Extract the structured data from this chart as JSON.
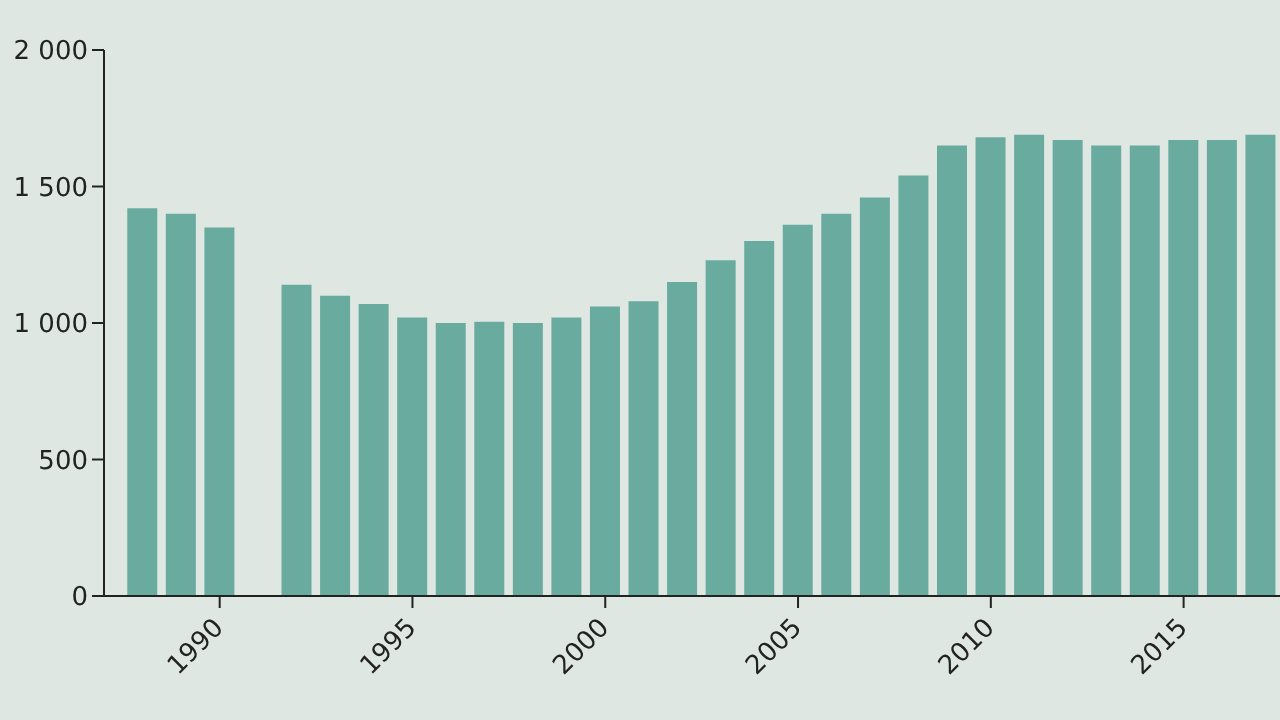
{
  "chart_data": {
    "type": "bar",
    "x": [
      1988,
      1989,
      1990,
      1991,
      1992,
      1993,
      1994,
      1995,
      1996,
      1997,
      1998,
      1999,
      2000,
      2001,
      2002,
      2003,
      2004,
      2005,
      2006,
      2007,
      2008,
      2009,
      2010,
      2011,
      2012,
      2013,
      2014,
      2015,
      2016,
      2017
    ],
    "values": [
      1420,
      1400,
      1350,
      null,
      1140,
      1100,
      1070,
      1020,
      1000,
      1005,
      1000,
      1020,
      1060,
      1080,
      1150,
      1230,
      1300,
      1360,
      1400,
      1460,
      1540,
      1650,
      1680,
      1690,
      1670,
      1650,
      1650,
      1670,
      1670,
      1690
    ],
    "color": "#6aab9f",
    "xlim": [
      1987,
      2017.5
    ],
    "xticks": [
      1990,
      1995,
      2000,
      2005,
      2010,
      2015
    ],
    "ylim": [
      0,
      2000
    ],
    "yticks": [
      0,
      500,
      {
        "value": 1000,
        "label": "1 000"
      },
      {
        "value": 1500,
        "label": "1 500"
      },
      {
        "value": 2000,
        "label": "2 000"
      }
    ],
    "grid": false,
    "legend": false
  }
}
